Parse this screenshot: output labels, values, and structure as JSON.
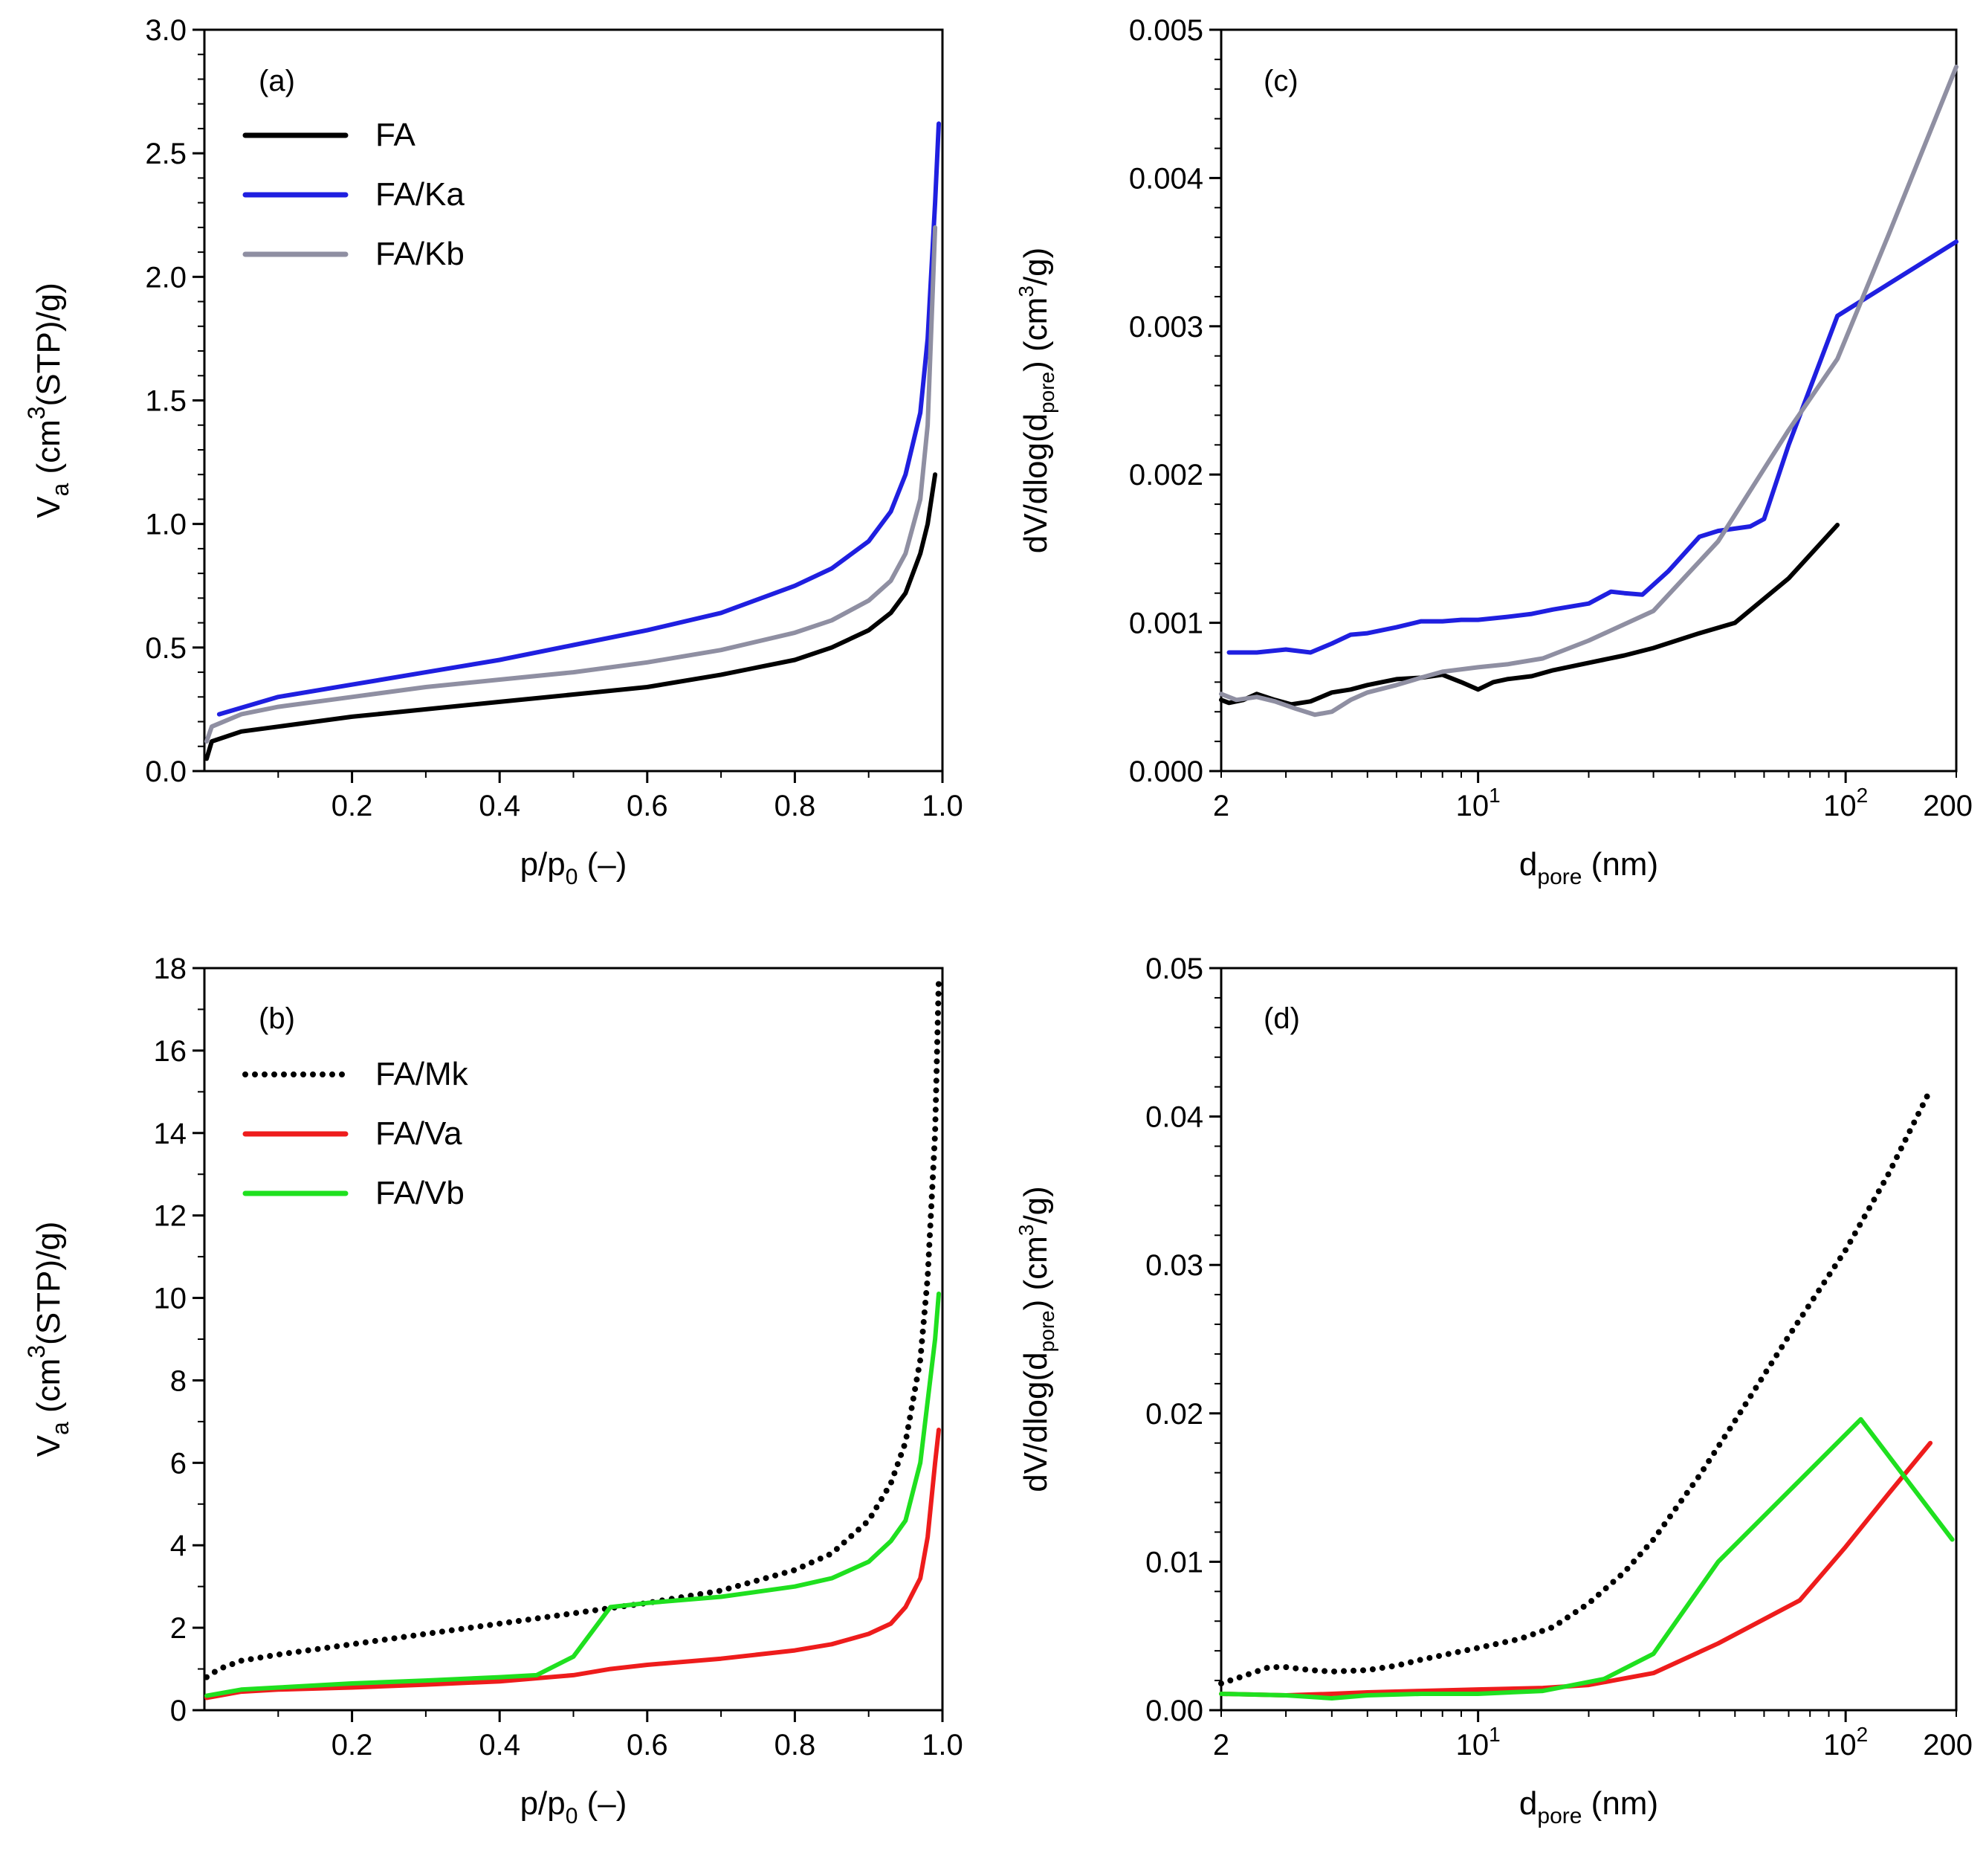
{
  "chart_data": [
    {
      "id": "a",
      "type": "line",
      "panel_label": "(a)",
      "xlabel": "p/p",
      "xlabel_sub": "0",
      "xlabel_suffix": " (–)",
      "ylabel_parts": [
        "V",
        "a",
        " (cm",
        "3",
        "(STP)/g)"
      ],
      "xscale": "linear",
      "xlim": [
        0,
        1.0
      ],
      "ylim": [
        0,
        3.0
      ],
      "xticks": [
        0.2,
        0.4,
        0.6,
        0.8,
        1.0
      ],
      "xtick_labels": [
        "0.2",
        "0.4",
        "0.6",
        "0.8",
        "1.0"
      ],
      "yticks": [
        0.0,
        0.5,
        1.0,
        1.5,
        2.0,
        2.5,
        3.0
      ],
      "ytick_labels": [
        "0.0",
        "0.5",
        "1.0",
        "1.5",
        "2.0",
        "2.5",
        "3.0"
      ],
      "legend_position": "top-left",
      "series": [
        {
          "name": "FA",
          "color": "#000000",
          "dash": "solid",
          "x": [
            0.003,
            0.01,
            0.05,
            0.1,
            0.2,
            0.3,
            0.4,
            0.5,
            0.6,
            0.7,
            0.8,
            0.85,
            0.9,
            0.93,
            0.95,
            0.97,
            0.98,
            0.99
          ],
          "y": [
            0.05,
            0.12,
            0.16,
            0.18,
            0.22,
            0.25,
            0.28,
            0.31,
            0.34,
            0.39,
            0.45,
            0.5,
            0.57,
            0.64,
            0.72,
            0.88,
            1.0,
            1.2
          ]
        },
        {
          "name": "FA/Ka",
          "color": "#1f1fe0",
          "dash": "solid",
          "x": [
            0.02,
            0.1,
            0.2,
            0.3,
            0.4,
            0.5,
            0.6,
            0.7,
            0.8,
            0.85,
            0.9,
            0.93,
            0.95,
            0.97,
            0.98,
            0.99,
            0.995
          ],
          "y": [
            0.23,
            0.3,
            0.35,
            0.4,
            0.45,
            0.51,
            0.57,
            0.64,
            0.75,
            0.82,
            0.93,
            1.05,
            1.2,
            1.45,
            1.75,
            2.3,
            2.62
          ]
        },
        {
          "name": "FA/Kb",
          "color": "#8f8fa2",
          "dash": "solid",
          "x": [
            0.003,
            0.01,
            0.05,
            0.1,
            0.2,
            0.3,
            0.4,
            0.5,
            0.6,
            0.7,
            0.8,
            0.85,
            0.9,
            0.93,
            0.95,
            0.97,
            0.98,
            0.99
          ],
          "y": [
            0.12,
            0.18,
            0.23,
            0.26,
            0.3,
            0.34,
            0.37,
            0.4,
            0.44,
            0.49,
            0.56,
            0.61,
            0.69,
            0.77,
            0.88,
            1.1,
            1.4,
            2.2
          ]
        }
      ]
    },
    {
      "id": "b",
      "type": "line",
      "panel_label": "(b)",
      "xlabel": "p/p",
      "xlabel_sub": "0",
      "xlabel_suffix": " (–)",
      "ylabel_parts": [
        "V",
        "a",
        " (cm",
        "3",
        "(STP)/g)"
      ],
      "xscale": "linear",
      "xlim": [
        0,
        1.0
      ],
      "ylim": [
        0,
        18
      ],
      "xticks": [
        0.2,
        0.4,
        0.6,
        0.8,
        1.0
      ],
      "xtick_labels": [
        "0.2",
        "0.4",
        "0.6",
        "0.8",
        "1.0"
      ],
      "yticks": [
        0,
        2,
        4,
        6,
        8,
        10,
        12,
        14,
        16,
        18
      ],
      "ytick_labels": [
        "0",
        "2",
        "4",
        "6",
        "8",
        "10",
        "12",
        "14",
        "16",
        "18"
      ],
      "legend_position": "top-left",
      "series": [
        {
          "name": "FA/Mk",
          "color": "#000000",
          "dash": "dotted",
          "x": [
            0.003,
            0.02,
            0.05,
            0.1,
            0.2,
            0.3,
            0.4,
            0.5,
            0.6,
            0.7,
            0.8,
            0.85,
            0.9,
            0.93,
            0.95,
            0.97,
            0.98,
            0.99,
            0.995
          ],
          "y": [
            0.8,
            1.0,
            1.2,
            1.35,
            1.6,
            1.85,
            2.1,
            2.35,
            2.6,
            2.9,
            3.4,
            3.8,
            4.6,
            5.5,
            6.5,
            8.5,
            10.5,
            14.0,
            17.7
          ]
        },
        {
          "name": "FA/Va",
          "color": "#ee1c1c",
          "dash": "solid",
          "x": [
            0.003,
            0.05,
            0.1,
            0.2,
            0.3,
            0.4,
            0.5,
            0.55,
            0.6,
            0.7,
            0.8,
            0.85,
            0.9,
            0.93,
            0.95,
            0.97,
            0.98,
            0.99,
            0.995
          ],
          "y": [
            0.3,
            0.45,
            0.5,
            0.55,
            0.62,
            0.7,
            0.85,
            1.0,
            1.1,
            1.25,
            1.45,
            1.6,
            1.85,
            2.1,
            2.5,
            3.2,
            4.2,
            6.0,
            6.8
          ]
        },
        {
          "name": "FA/Vb",
          "color": "#1fe01f",
          "dash": "solid",
          "x": [
            0.003,
            0.05,
            0.1,
            0.2,
            0.3,
            0.4,
            0.45,
            0.5,
            0.55,
            0.6,
            0.7,
            0.8,
            0.85,
            0.9,
            0.93,
            0.95,
            0.97,
            0.98,
            0.99,
            0.995
          ],
          "y": [
            0.35,
            0.5,
            0.55,
            0.65,
            0.72,
            0.8,
            0.85,
            1.3,
            2.5,
            2.6,
            2.75,
            3.0,
            3.2,
            3.6,
            4.1,
            4.6,
            6.0,
            7.5,
            9.0,
            10.1
          ]
        }
      ]
    },
    {
      "id": "c",
      "type": "line",
      "panel_label": "(c)",
      "xlabel": "d",
      "xlabel_sub": "pore",
      "xlabel_suffix": " (nm)",
      "ylabel_parts": [
        "dV/dlog(d",
        "pore",
        ") (cm",
        "3",
        "/g)"
      ],
      "xscale": "log",
      "xlim": [
        2,
        200
      ],
      "ylim": [
        0,
        0.005
      ],
      "xtick_labels": [
        {
          "v": 2,
          "t": "2"
        },
        {
          "v": 10,
          "t": "10",
          "sup": "1"
        },
        {
          "v": 100,
          "t": "10",
          "sup": "2"
        },
        {
          "v": 200,
          "t": "200"
        }
      ],
      "yticks": [
        0.0,
        0.001,
        0.002,
        0.003,
        0.004,
        0.005
      ],
      "ytick_labels": [
        "0.000",
        "0.001",
        "0.002",
        "0.003",
        "0.004",
        "0.005"
      ],
      "series": [
        {
          "name": "FA",
          "color": "#000000",
          "dash": "solid",
          "x": [
            2.0,
            2.1,
            2.3,
            2.5,
            2.8,
            3.1,
            3.5,
            4.0,
            4.5,
            5.0,
            6.0,
            7.0,
            8.0,
            9.0,
            10.0,
            11.0,
            12.0,
            14.0,
            16.0,
            20.0,
            25.0,
            30.0,
            40.0,
            50.0,
            70.0,
            95.0
          ],
          "y": [
            0.00048,
            0.00046,
            0.00048,
            0.00052,
            0.00048,
            0.00045,
            0.00047,
            0.00053,
            0.00055,
            0.00058,
            0.00062,
            0.00063,
            0.00065,
            0.0006,
            0.00055,
            0.0006,
            0.00062,
            0.00064,
            0.00068,
            0.00073,
            0.00078,
            0.00083,
            0.00093,
            0.001,
            0.0013,
            0.00166
          ]
        },
        {
          "name": "FA/Ka",
          "color": "#1f1fe0",
          "dash": "solid",
          "x": [
            2.1,
            2.5,
            3.0,
            3.5,
            4.0,
            4.5,
            5.0,
            6.0,
            7.0,
            8.0,
            9.0,
            10.0,
            12.0,
            14.0,
            16.0,
            20.0,
            23.0,
            25.0,
            28.0,
            33.0,
            40.0,
            45.0,
            55.0,
            60.0,
            70.0,
            95.0,
            200.0
          ],
          "y": [
            0.0008,
            0.0008,
            0.00082,
            0.0008,
            0.00086,
            0.00092,
            0.00093,
            0.00097,
            0.00101,
            0.00101,
            0.00102,
            0.00102,
            0.00104,
            0.00106,
            0.00109,
            0.00113,
            0.00121,
            0.0012,
            0.00119,
            0.00135,
            0.00158,
            0.00162,
            0.00165,
            0.0017,
            0.0022,
            0.00307,
            0.00357
          ]
        },
        {
          "name": "FA/Kb",
          "color": "#8f8fa2",
          "dash": "solid",
          "x": [
            2.0,
            2.2,
            2.5,
            2.8,
            3.2,
            3.6,
            4.0,
            4.5,
            5.0,
            6.0,
            7.0,
            8.0,
            10.0,
            12.0,
            15.0,
            20.0,
            30.0,
            45.0,
            70.0,
            95.0,
            130.0,
            200.0
          ],
          "y": [
            0.00052,
            0.00048,
            0.0005,
            0.00047,
            0.00042,
            0.00038,
            0.0004,
            0.00048,
            0.00053,
            0.00058,
            0.00063,
            0.00067,
            0.0007,
            0.00072,
            0.00076,
            0.00088,
            0.00108,
            0.00155,
            0.0023,
            0.00278,
            0.0036,
            0.00475
          ]
        }
      ]
    },
    {
      "id": "d",
      "type": "line",
      "panel_label": "(d)",
      "xlabel": "d",
      "xlabel_sub": "pore",
      "xlabel_suffix": " (nm)",
      "ylabel_parts": [
        "dV/dlog(d",
        "pore",
        ") (cm",
        "3",
        "/g)"
      ],
      "xscale": "log",
      "xlim": [
        2,
        200
      ],
      "ylim": [
        0,
        0.05
      ],
      "xtick_labels": [
        {
          "v": 2,
          "t": "2"
        },
        {
          "v": 10,
          "t": "10",
          "sup": "1"
        },
        {
          "v": 100,
          "t": "10",
          "sup": "2"
        },
        {
          "v": 200,
          "t": "200"
        }
      ],
      "yticks": [
        0.0,
        0.01,
        0.02,
        0.03,
        0.04,
        0.05
      ],
      "ytick_labels": [
        "0.00",
        "0.01",
        "0.02",
        "0.03",
        "0.04",
        "0.05"
      ],
      "series": [
        {
          "name": "FA/Mk",
          "color": "#000000",
          "dash": "dotted",
          "x": [
            2.0,
            2.3,
            2.7,
            3.0,
            3.5,
            4.0,
            5.0,
            6.0,
            7.0,
            8.0,
            10.0,
            13.0,
            16.0,
            20.0,
            25.0,
            30.0,
            40.0,
            50.0,
            70.0,
            100.0,
            130.0,
            170.0
          ],
          "y": [
            0.0018,
            0.0023,
            0.0029,
            0.0029,
            0.0027,
            0.0026,
            0.0027,
            0.003,
            0.0034,
            0.0037,
            0.0042,
            0.0048,
            0.0056,
            0.0072,
            0.0093,
            0.0115,
            0.0158,
            0.0195,
            0.0252,
            0.031,
            0.036,
            0.0418
          ]
        },
        {
          "name": "FA/Va",
          "color": "#ee1c1c",
          "dash": "solid",
          "x": [
            2.0,
            3.0,
            4.0,
            5.0,
            7.0,
            10.0,
            15.0,
            20.0,
            30.0,
            45.0,
            75.0,
            100.0,
            130.0,
            170.0
          ],
          "y": [
            0.0011,
            0.001,
            0.0011,
            0.0012,
            0.0013,
            0.0014,
            0.0015,
            0.0017,
            0.0025,
            0.0045,
            0.0074,
            0.011,
            0.0145,
            0.018
          ]
        },
        {
          "name": "FA/Vb",
          "color": "#1fe01f",
          "dash": "solid",
          "x": [
            2.0,
            3.0,
            4.0,
            5.0,
            7.0,
            10.0,
            15.0,
            22.0,
            30.0,
            45.0,
            110.0,
            195.0
          ],
          "y": [
            0.0011,
            0.001,
            0.0008,
            0.001,
            0.0011,
            0.0011,
            0.0013,
            0.0021,
            0.0038,
            0.01,
            0.0196,
            0.0115
          ]
        }
      ]
    }
  ]
}
